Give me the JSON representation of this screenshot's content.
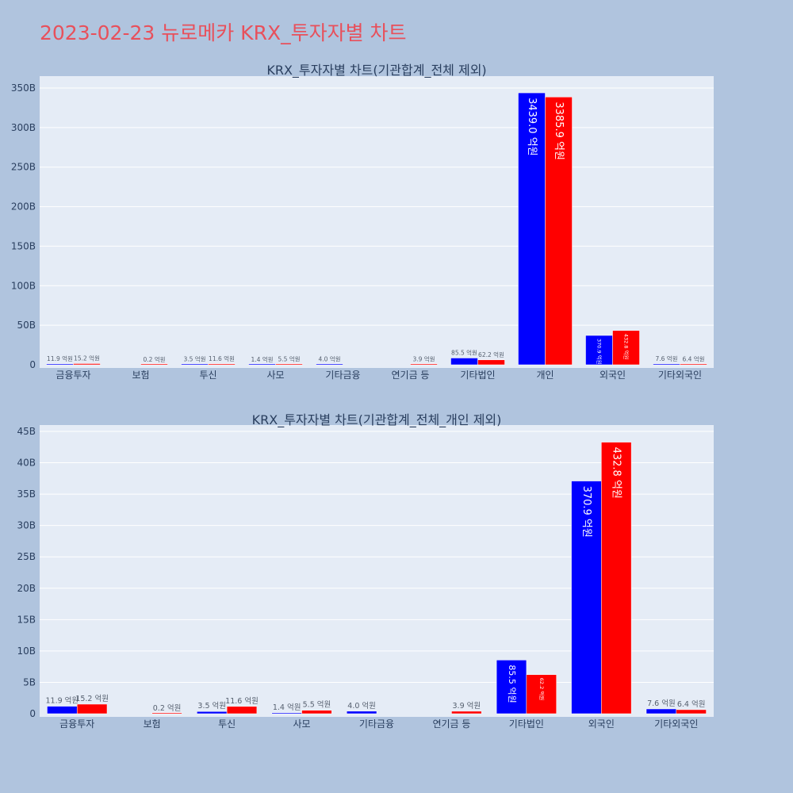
{
  "page_title": "2023-02-23 뉴로메카 KRX_투자자별 차트",
  "colors": {
    "buy": "#0000ff",
    "sell": "#ff0000",
    "plot_bg": "#e5ecf6",
    "page_bg": "#b0c4de",
    "title": "#e8505b"
  },
  "chart_data": [
    {
      "type": "bar",
      "title": "KRX_투자자별 차트(기관합계_전체 제외)",
      "categories": [
        "금융투자",
        "보험",
        "투신",
        "사모",
        "기타금융",
        "연기금 등",
        "기타법인",
        "개인",
        "외국인",
        "기타외국인"
      ],
      "series": [
        {
          "values": [
            1.19,
            0,
            0.35,
            0.14,
            0.4,
            0,
            8.55,
            343.9,
            37.09,
            0.76
          ],
          "labels": [
            "11.9 억원",
            "",
            "3.5 억원",
            "1.4 억원",
            "4.0 억원",
            "",
            "85.5 억원",
            "3439.0 억원",
            "370.9 억원",
            "7.6 억원"
          ]
        },
        {
          "values": [
            1.52,
            0.02,
            1.16,
            0.55,
            0,
            0.39,
            6.22,
            338.59,
            43.28,
            0.64
          ],
          "labels": [
            "15.2 억원",
            "0.2 억원",
            "11.6 억원",
            "5.5 억원",
            "",
            "3.9 억원",
            "62.2 억원",
            "3385.9 억원",
            "432.8 억원",
            "6.4 억원"
          ]
        }
      ],
      "y_ticks": [
        "0",
        "50B",
        "100B",
        "150B",
        "200B",
        "250B",
        "300B",
        "350B"
      ],
      "ylim": [
        0,
        350
      ],
      "grid": true
    },
    {
      "type": "bar",
      "title": "KRX_투자자별 차트(기관합계_전체_개인 제외)",
      "categories": [
        "금융투자",
        "보험",
        "투신",
        "사모",
        "기타금융",
        "연기금 등",
        "기타법인",
        "외국인",
        "기타외국인"
      ],
      "series": [
        {
          "values": [
            1.19,
            0,
            0.35,
            0.14,
            0.4,
            0,
            8.55,
            37.09,
            0.76
          ],
          "labels": [
            "11.9 억원",
            "",
            "3.5 억원",
            "1.4 억원",
            "4.0 억원",
            "",
            "85.5 억원",
            "370.9 억원",
            "7.6 억원"
          ]
        },
        {
          "values": [
            1.52,
            0.02,
            1.16,
            0.55,
            0,
            0.39,
            6.22,
            43.28,
            0.64
          ],
          "labels": [
            "15.2 억원",
            "0.2 억원",
            "11.6 억원",
            "5.5 억원",
            "",
            "3.9 억원",
            "62.2 억원",
            "432.8 억원",
            "6.4 억원"
          ]
        }
      ],
      "y_ticks": [
        "0",
        "5B",
        "10B",
        "15B",
        "20B",
        "25B",
        "30B",
        "35B",
        "40B",
        "45B"
      ],
      "ylim": [
        0,
        45
      ],
      "grid": true
    }
  ]
}
